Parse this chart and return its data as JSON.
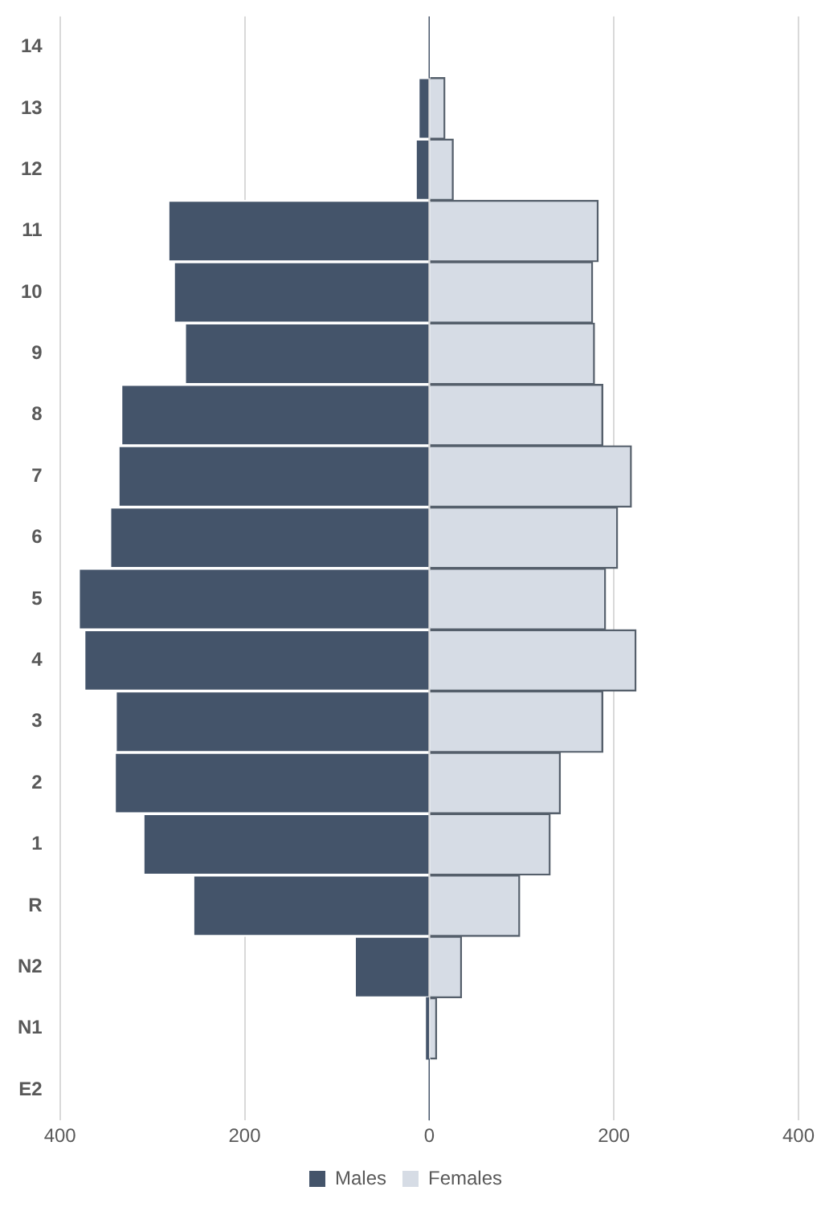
{
  "chart_data": {
    "type": "bar",
    "orientation": "horizontal",
    "stacked": true,
    "categories": [
      "14",
      "13",
      "12",
      "11",
      "10",
      "9",
      "8",
      "7",
      "6",
      "5",
      "4",
      "3",
      "2",
      "1",
      "R",
      "N2",
      "N1",
      "E2"
    ],
    "series": [
      {
        "name": "Males",
        "color": "#44546a",
        "values": [
          0,
          -12,
          -15,
          -283,
          -277,
          -265,
          -334,
          -337,
          -346,
          -380,
          -374,
          -340,
          -341,
          -310,
          -256,
          -81,
          -3,
          0
        ]
      },
      {
        "name": "Females",
        "color": "#d6dce5",
        "values": [
          null,
          17,
          26,
          183,
          177,
          179,
          188,
          219,
          204,
          191,
          224,
          188,
          142,
          131,
          98,
          35,
          8,
          0
        ]
      }
    ],
    "xlim": [
      -400,
      400
    ],
    "xticks": [
      {
        "value": -400,
        "label": "400"
      },
      {
        "value": -200,
        "label": "200"
      },
      0,
      200,
      400
    ],
    "grid": "x",
    "legend": "bottom"
  }
}
